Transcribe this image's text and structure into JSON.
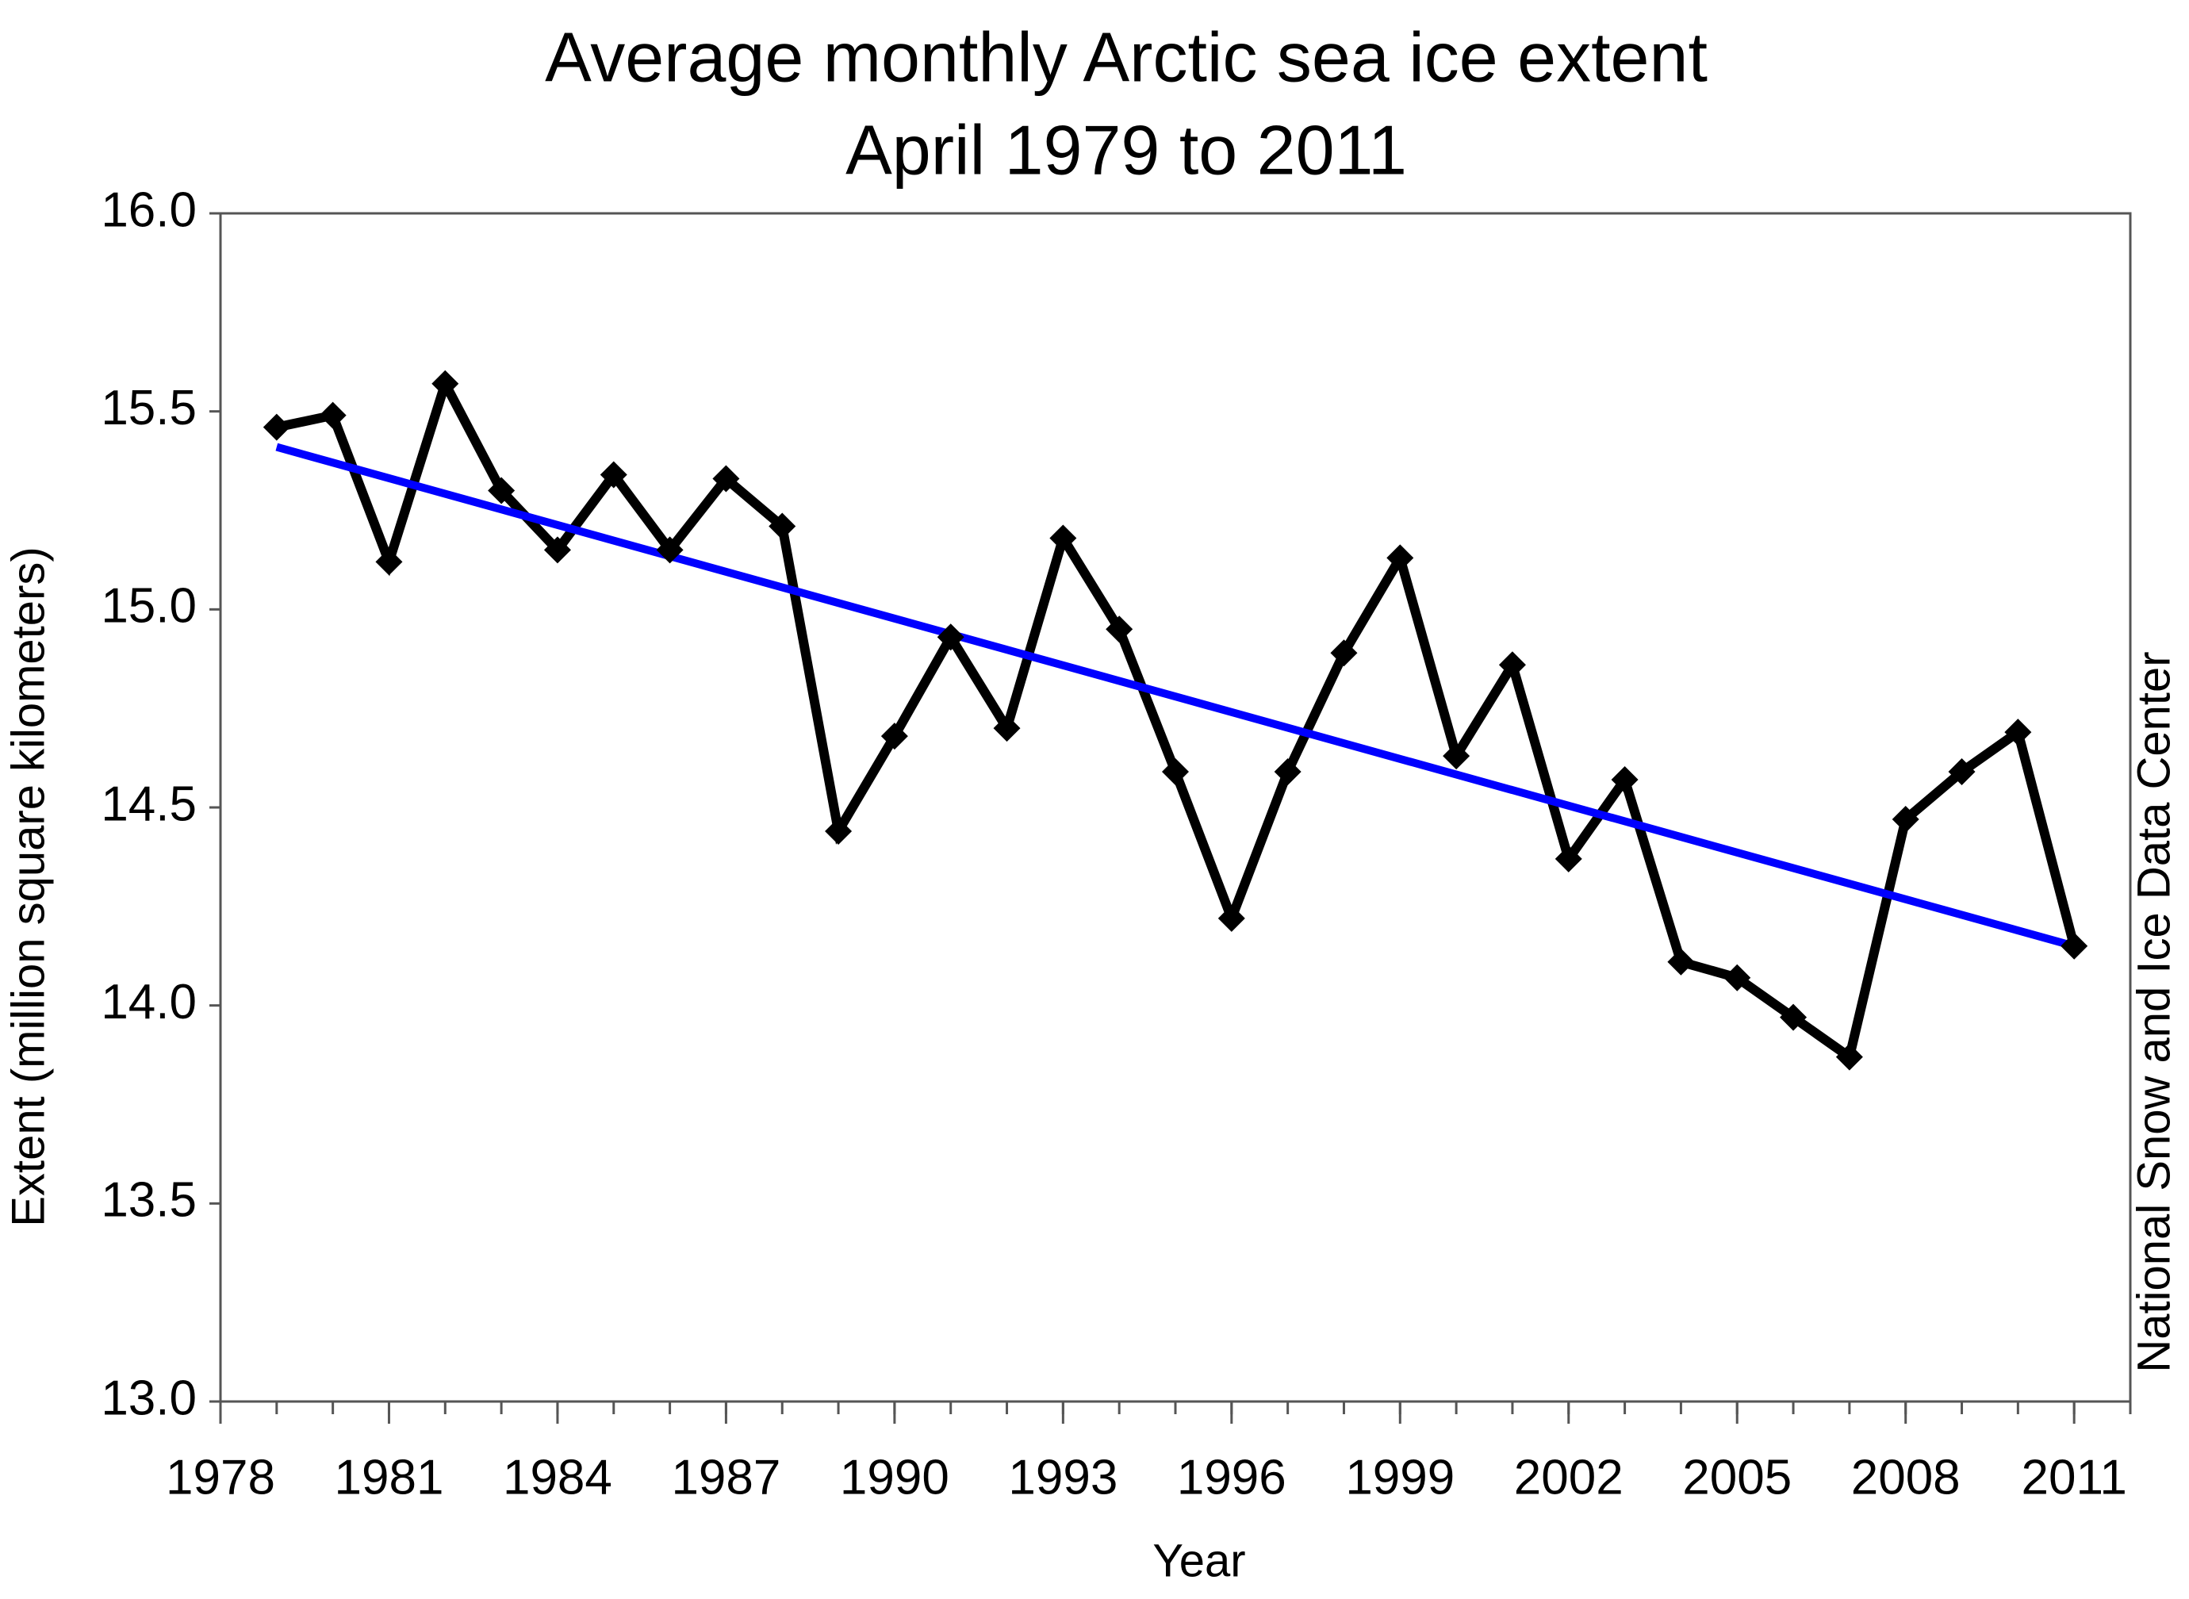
{
  "chart_data": {
    "type": "line",
    "title": "Average monthly Arctic sea ice extent",
    "subtitle": "April 1979 to 2011",
    "x_label": "Year",
    "y_label": "Extent (million square kilometers)",
    "source": "National Snow and Ice Data Center",
    "x": [
      1979,
      1980,
      1981,
      1982,
      1983,
      1984,
      1985,
      1986,
      1987,
      1988,
      1989,
      1990,
      1991,
      1992,
      1993,
      1994,
      1995,
      1996,
      1997,
      1998,
      1999,
      2000,
      2001,
      2002,
      2003,
      2004,
      2005,
      2006,
      2007,
      2008,
      2009,
      2010,
      2011
    ],
    "series": [
      {
        "color": "#000000",
        "markers": true,
        "values": [
          15.46,
          15.49,
          15.12,
          15.57,
          15.3,
          15.15,
          15.34,
          15.15,
          15.33,
          15.21,
          14.44,
          14.68,
          14.93,
          14.7,
          15.18,
          14.95,
          14.59,
          14.22,
          14.59,
          14.89,
          15.13,
          14.63,
          14.86,
          14.37,
          14.57,
          14.11,
          14.07,
          13.97,
          13.87,
          14.47,
          14.59,
          14.69,
          14.15
        ]
      }
    ],
    "trend": {
      "color": "#0000ff",
      "x": [
        1979,
        2011
      ],
      "values": [
        15.41,
        14.15
      ]
    },
    "xlim": [
      1978,
      2012
    ],
    "xticks": [
      1978,
      1981,
      1984,
      1987,
      1990,
      1993,
      1996,
      1999,
      2002,
      2005,
      2008,
      2011
    ],
    "xminorticks": [
      1978,
      1979,
      1980,
      1981,
      1982,
      1983,
      1984,
      1985,
      1986,
      1987,
      1988,
      1989,
      1990,
      1991,
      1992,
      1993,
      1994,
      1995,
      1996,
      1997,
      1998,
      1999,
      2000,
      2001,
      2002,
      2003,
      2004,
      2005,
      2006,
      2007,
      2008,
      2009,
      2010,
      2011,
      2012
    ],
    "ylim": [
      13.0,
      16.0
    ],
    "yticks": [
      {
        "value": 13,
        "label": "13.0"
      },
      {
        "value": 13.5,
        "label": "13.5"
      },
      {
        "value": 14,
        "label": "14.0"
      },
      {
        "value": 14.5,
        "label": "14.5"
      },
      {
        "value": 15,
        "label": "15.0"
      },
      {
        "value": 15.5,
        "label": "15.5"
      },
      {
        "value": 16,
        "label": "16.0"
      }
    ],
    "grid": false
  }
}
